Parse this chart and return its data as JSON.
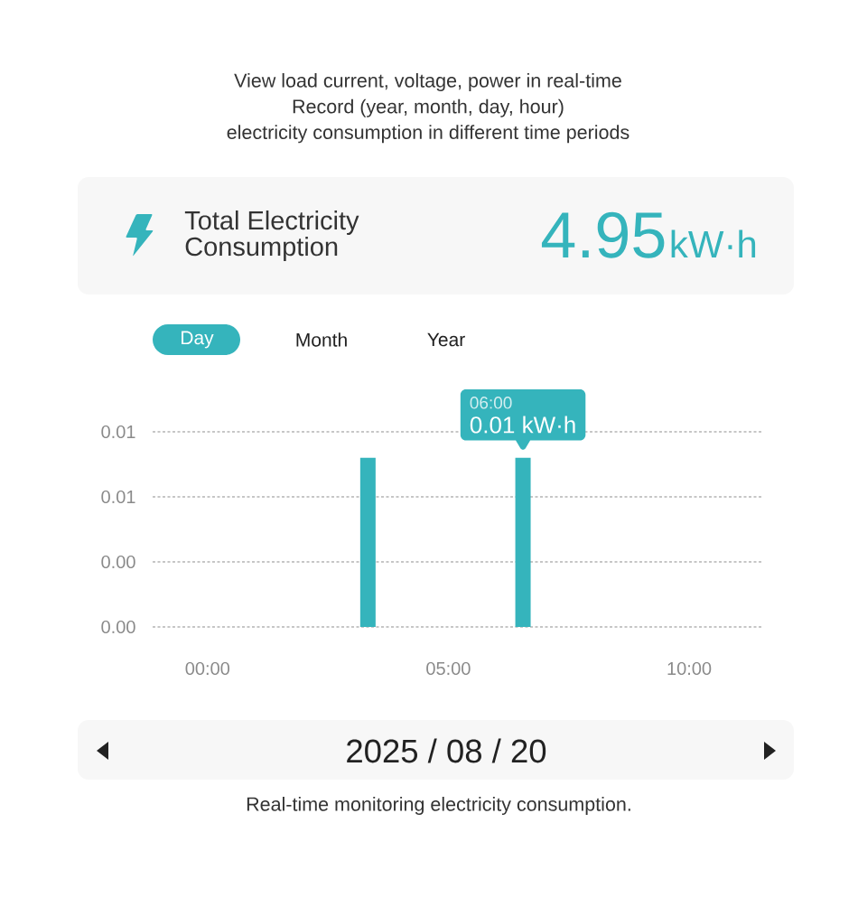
{
  "chart_data": {
    "type": "bar",
    "title": "View load current, voltage, power in real-time",
    "subtitle": "Record (year, month, day, hour)\nelectricity consumption in different time periods",
    "x": [
      3.33,
      6.55
    ],
    "values": [
      0.0104,
      0.0104
    ],
    "color": "#35b4bc",
    "xlim": [
      -1.14,
      11.5
    ],
    "xticks": [
      {
        "value": 0,
        "label": "00:00"
      },
      {
        "value": 5,
        "label": "05:00"
      },
      {
        "value": 10,
        "label": "10:00"
      }
    ],
    "ylim": [
      0,
      0.012
    ],
    "yticks": [
      {
        "value": 0,
        "label": "0.00"
      },
      {
        "value": 0.004,
        "label": "0.00"
      },
      {
        "value": 0.008,
        "label": "0.01"
      },
      {
        "value": 0.012,
        "label": "0.01"
      }
    ],
    "grid": "y",
    "annotations": [
      "Total Electricity Consumption",
      "4.95",
      "kW·h",
      "Day",
      "Month",
      "Year",
      {
        "text": "06:00",
        "x": 6.55,
        "y": 0.0104
      },
      {
        "text": "0.01 kW·h",
        "x": 6.55,
        "y": 0.0104
      },
      "2025 / 08 / 20",
      "Real-time monitoring electricity consumption."
    ]
  }
}
